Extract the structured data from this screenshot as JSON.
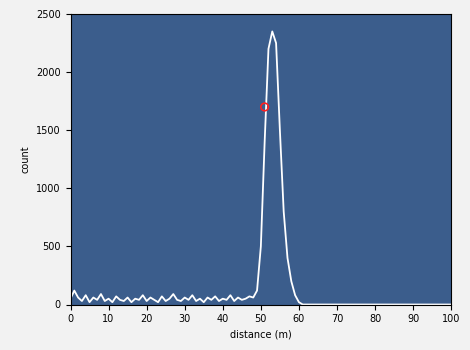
{
  "chart_data": {
    "type": "line",
    "xlabel": "distance (m)",
    "ylabel": "count",
    "xlim": [
      0,
      100
    ],
    "xticks": [
      0,
      10,
      20,
      30,
      40,
      50,
      60,
      70,
      80,
      90,
      100
    ],
    "ylim": [
      0,
      2500
    ],
    "yticks": [
      0,
      500,
      1000,
      1500,
      2000,
      2500
    ],
    "grid": false,
    "series": [
      {
        "type": "line",
        "color": "#ffffff",
        "line_style": "solid",
        "x": [
          0,
          1,
          2,
          3,
          4,
          5,
          6,
          7,
          8,
          9,
          10,
          11,
          12,
          13,
          14,
          15,
          16,
          17,
          18,
          19,
          20,
          21,
          22,
          23,
          24,
          25,
          26,
          27,
          28,
          29,
          30,
          31,
          32,
          33,
          34,
          35,
          36,
          37,
          38,
          39,
          40,
          41,
          42,
          43,
          44,
          45,
          46,
          47,
          48,
          49,
          50,
          51,
          52,
          53,
          54,
          55,
          56,
          57,
          58,
          59,
          60,
          61,
          62,
          63,
          64,
          65,
          66,
          67,
          68,
          69,
          70,
          71,
          72,
          73,
          74,
          75,
          76,
          77,
          78,
          79,
          80,
          81,
          82,
          83,
          84,
          85,
          86,
          87,
          88,
          89,
          90,
          91,
          92,
          93,
          94,
          95,
          96,
          97,
          98,
          99,
          100
        ],
        "values": [
          50,
          120,
          60,
          30,
          80,
          20,
          60,
          40,
          90,
          30,
          50,
          20,
          70,
          40,
          30,
          60,
          20,
          50,
          40,
          80,
          30,
          60,
          40,
          20,
          70,
          30,
          50,
          90,
          40,
          30,
          60,
          40,
          80,
          30,
          50,
          20,
          60,
          40,
          70,
          30,
          50,
          40,
          80,
          30,
          60,
          40,
          50,
          70,
          60,
          120,
          500,
          1400,
          2200,
          2350,
          2250,
          1500,
          800,
          400,
          200,
          80,
          20,
          0,
          0,
          0,
          0,
          0,
          0,
          0,
          0,
          0,
          0,
          0,
          0,
          0,
          0,
          0,
          0,
          0,
          0,
          0,
          0,
          0,
          0,
          0,
          0,
          0,
          0,
          0,
          0,
          0,
          0,
          0,
          0,
          0,
          0,
          0,
          0,
          0,
          0,
          0,
          0
        ]
      },
      {
        "type": "scatter",
        "color": "#ff2020",
        "marker": "o",
        "x": [
          51
        ],
        "values": [
          1700
        ]
      }
    ]
  }
}
